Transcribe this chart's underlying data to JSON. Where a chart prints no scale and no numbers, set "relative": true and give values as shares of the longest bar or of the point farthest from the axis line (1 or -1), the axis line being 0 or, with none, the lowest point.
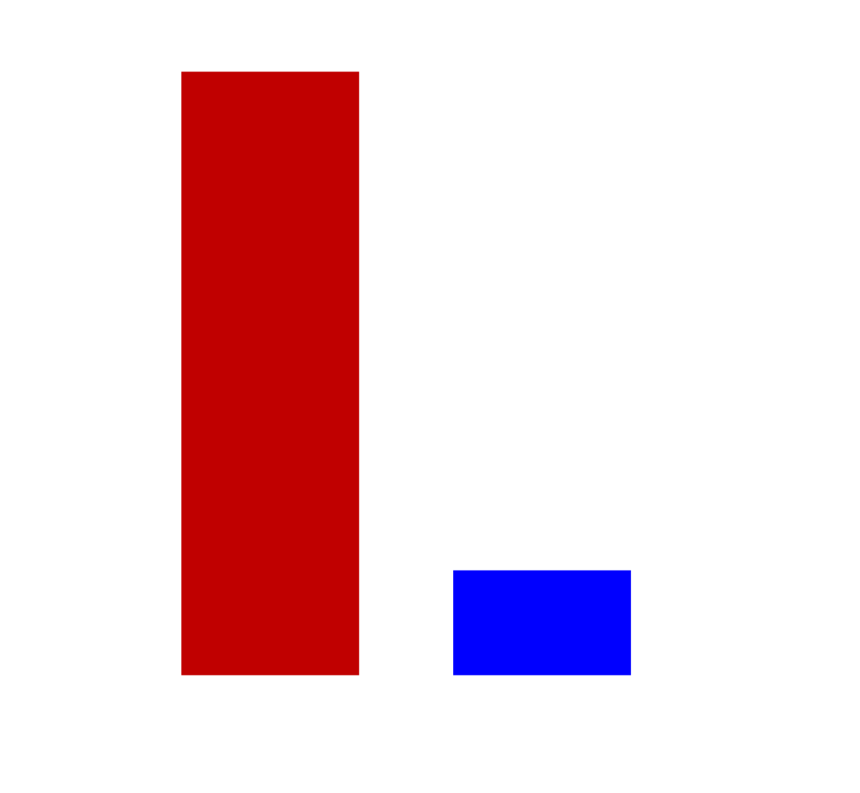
{
  "chart_data": {
    "type": "bar",
    "relative": true,
    "categories": [
      null,
      null
    ],
    "values": [
      1,
      0.17
    ],
    "colors": [
      "#c00000",
      "#0000ff"
    ]
  }
}
